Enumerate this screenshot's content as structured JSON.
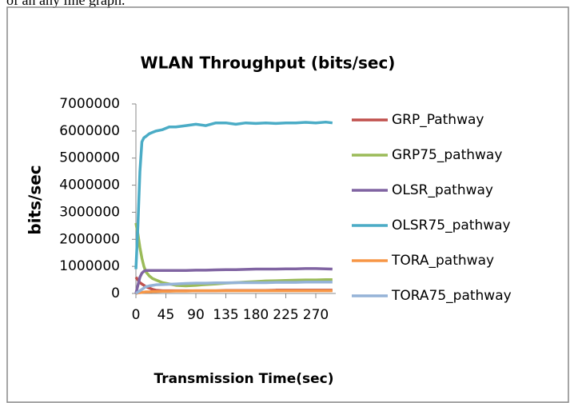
{
  "caption": "of an any line graph.",
  "chart_data": {
    "type": "line",
    "title": "WLAN Throughput (bits/sec)",
    "y_label": "bits/sec",
    "x_label": "Transmission Time(sec)",
    "x": [
      0,
      3,
      6,
      9,
      12,
      15,
      20,
      25,
      30,
      40,
      50,
      60,
      75,
      90,
      105,
      120,
      135,
      150,
      165,
      180,
      195,
      210,
      225,
      240,
      255,
      270,
      285,
      295
    ],
    "xlim": [
      0,
      300
    ],
    "xticks": [
      0,
      45,
      90,
      135,
      180,
      225,
      270
    ],
    "ylim": [
      0,
      7000000
    ],
    "yticks": [
      0,
      1000000,
      2000000,
      3000000,
      4000000,
      5000000,
      6000000,
      7000000
    ],
    "series": [
      {
        "name": "GRP_Pathway",
        "color": "#c0504d",
        "values": [
          600000,
          500000,
          400000,
          350000,
          300000,
          250000,
          200000,
          150000,
          120000,
          100000,
          100000,
          100000,
          100000,
          100000,
          100000,
          100000,
          110000,
          110000,
          110000,
          110000,
          110000,
          120000,
          120000,
          120000,
          120000,
          120000,
          120000,
          120000
        ]
      },
      {
        "name": "GRP75_pathway",
        "color": "#9bbb59",
        "values": [
          2600000,
          2200000,
          1700000,
          1300000,
          1000000,
          800000,
          650000,
          550000,
          500000,
          400000,
          350000,
          300000,
          280000,
          300000,
          330000,
          350000,
          380000,
          400000,
          420000,
          440000,
          460000,
          470000,
          480000,
          490000,
          500000,
          500000,
          510000,
          510000
        ]
      },
      {
        "name": "OLSR_pathway",
        "color": "#8064a2",
        "values": [
          0,
          300000,
          600000,
          750000,
          820000,
          850000,
          850000,
          850000,
          850000,
          850000,
          850000,
          850000,
          850000,
          860000,
          860000,
          870000,
          880000,
          880000,
          890000,
          900000,
          900000,
          900000,
          910000,
          910000,
          920000,
          920000,
          910000,
          900000
        ]
      },
      {
        "name": "OLSR75_pathway",
        "color": "#4bacc6",
        "values": [
          900000,
          2500000,
          4500000,
          5600000,
          5750000,
          5800000,
          5900000,
          5950000,
          6000000,
          6050000,
          6150000,
          6150000,
          6200000,
          6250000,
          6200000,
          6300000,
          6300000,
          6250000,
          6300000,
          6280000,
          6300000,
          6280000,
          6300000,
          6300000,
          6320000,
          6300000,
          6330000,
          6300000
        ]
      },
      {
        "name": "TORA_pathway",
        "color": "#f79646",
        "values": [
          0,
          20000,
          30000,
          40000,
          50000,
          60000,
          60000,
          70000,
          70000,
          80000,
          80000,
          90000,
          90000,
          100000,
          100000,
          100000,
          100000,
          100000,
          100000,
          100000,
          100000,
          100000,
          100000,
          100000,
          100000,
          100000,
          100000,
          100000
        ]
      },
      {
        "name": "TORA75_pathway",
        "color": "#95b3d7",
        "values": [
          0,
          50000,
          100000,
          150000,
          200000,
          250000,
          280000,
          300000,
          320000,
          330000,
          340000,
          350000,
          370000,
          380000,
          380000,
          390000,
          390000,
          400000,
          400000,
          400000,
          400000,
          410000,
          410000,
          410000,
          420000,
          420000,
          420000,
          420000
        ]
      }
    ]
  }
}
